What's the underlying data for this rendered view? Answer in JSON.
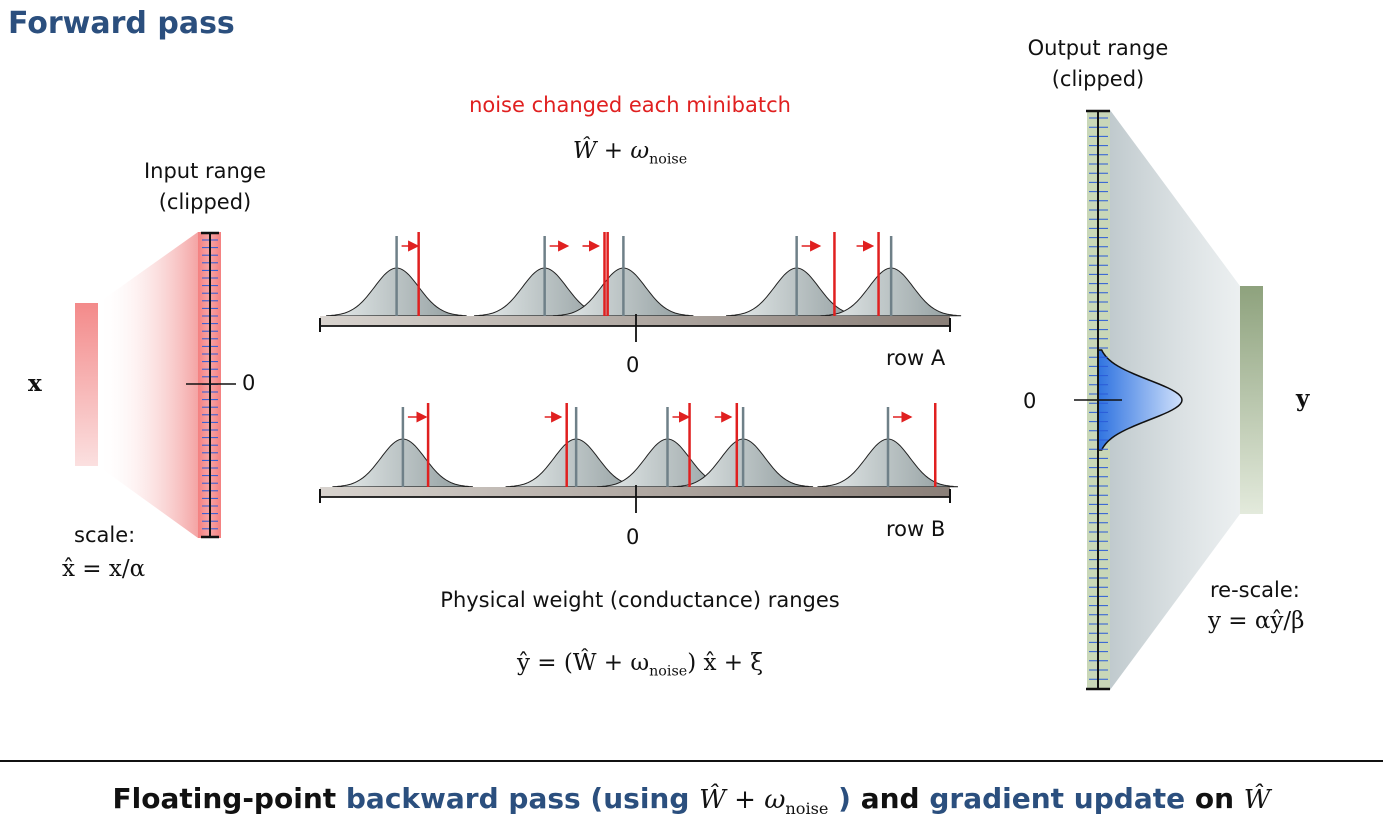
{
  "title": "Forward pass",
  "input": {
    "symbol": "x",
    "range_label_1": "Input range",
    "range_label_2": "(clipped)",
    "zero": "0",
    "scale_label": "scale:",
    "scale_eq": "x̂ = x/α"
  },
  "middle": {
    "noise_label": "noise changed each minibatch",
    "noise_eq_w": "Ŵ + ω",
    "noise_eq_sub": "noise",
    "row_a": "row A",
    "row_b": "row B",
    "zero": "0",
    "caption": "Physical weight (conductance) ranges",
    "eq_left": "ŷ = (Ŵ + ω",
    "eq_sub": "noise",
    "eq_right": ") x̂ + ξ",
    "row_a_peaks": [
      {
        "mean": -0.76,
        "noise": 0.07
      },
      {
        "mean": -0.29,
        "noise": 0.2
      },
      {
        "mean": -0.04,
        "noise": -0.06
      },
      {
        "mean": 0.51,
        "noise": 0.12
      },
      {
        "mean": 0.81,
        "noise": -0.04
      }
    ],
    "row_b_peaks": [
      {
        "mean": -0.74,
        "noise": 0.08
      },
      {
        "mean": -0.19,
        "noise": -0.03
      },
      {
        "mean": 0.1,
        "noise": 0.07
      },
      {
        "mean": 0.34,
        "noise": -0.02
      },
      {
        "mean": 0.8,
        "noise": 0.15
      }
    ]
  },
  "output": {
    "range_label_1": "Output range",
    "range_label_2": "(clipped)",
    "zero": "0",
    "symbol": "y",
    "rescale_label": "re-scale:",
    "rescale_eq": "y = αŷ/β"
  },
  "bottom": {
    "part1": "Floating-point ",
    "part2": "backward pass (using ",
    "part3_w": "Ŵ + ω",
    "part3_sub": "noise",
    "part4": " )",
    "part5": " and ",
    "part6": "gradient update",
    "part7": " on ",
    "part8": "Ŵ"
  },
  "colors": {
    "title": "#2b4f7e",
    "red": "#e02020",
    "input_bar": "#f07878",
    "output_bar": "#8fa27e",
    "output_range": "#c9d7b8",
    "distribution": "#3d7fe0",
    "gauss": "#aab3b3"
  }
}
